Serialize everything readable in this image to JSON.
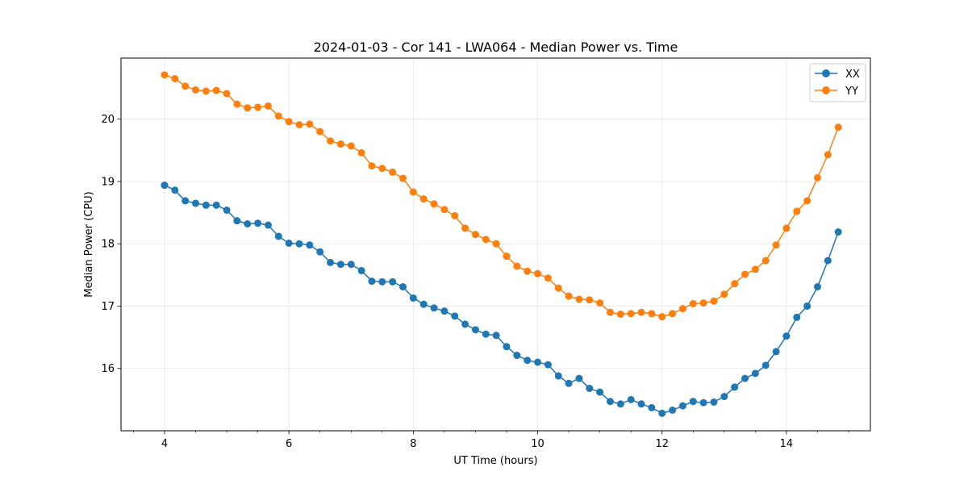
{
  "chart_data": {
    "type": "line",
    "title": "2024-01-03 - Cor 141 - LWA064 - Median Power vs. Time",
    "xlabel": "UT Time (hours)",
    "ylabel": "Median Power (CPU)",
    "xlim": [
      3.3,
      15.35
    ],
    "ylim": [
      15.0,
      20.98
    ],
    "xticks": [
      4,
      6,
      8,
      10,
      12,
      14
    ],
    "xtick_labels": [
      "4",
      "6",
      "8",
      "10",
      "12",
      "14"
    ],
    "xminor_ticks": [
      3.5,
      4.5,
      5,
      5.5,
      6.5,
      7,
      7.5,
      8.5,
      9,
      9.5,
      10.5,
      11,
      11.5,
      12.5,
      13,
      13.5,
      14.5,
      15
    ],
    "yticks": [
      16,
      17,
      18,
      19,
      20
    ],
    "ytick_labels": [
      "16",
      "17",
      "18",
      "19",
      "20"
    ],
    "grid": true,
    "legend_position": "top-right",
    "x": [
      4.0,
      4.1667,
      4.3333,
      4.5,
      4.6667,
      4.8333,
      5.0,
      5.1667,
      5.3333,
      5.5,
      5.6667,
      5.8333,
      6.0,
      6.1667,
      6.3333,
      6.5,
      6.6667,
      6.8333,
      7.0,
      7.1667,
      7.3333,
      7.5,
      7.6667,
      7.8333,
      8.0,
      8.1667,
      8.3333,
      8.5,
      8.6667,
      8.8333,
      9.0,
      9.1667,
      9.3333,
      9.5,
      9.6667,
      9.8333,
      10.0,
      10.1667,
      10.3333,
      10.5,
      10.6667,
      10.8333,
      11.0,
      11.1667,
      11.3333,
      11.5,
      11.6667,
      11.8333,
      12.0,
      12.1667,
      12.3333,
      12.5,
      12.6667,
      12.8333,
      13.0,
      13.1667,
      13.3333,
      13.5,
      13.6667,
      13.8333,
      14.0,
      14.1667,
      14.3333,
      14.5,
      14.6667,
      14.8333
    ],
    "series": [
      {
        "name": "XX",
        "color": "#1f77b4",
        "values": [
          18.94,
          18.86,
          18.69,
          18.65,
          18.62,
          18.62,
          18.54,
          18.37,
          18.32,
          18.33,
          18.3,
          18.12,
          18.01,
          18.0,
          17.98,
          17.87,
          17.7,
          17.67,
          17.67,
          17.57,
          17.4,
          17.39,
          17.39,
          17.31,
          17.13,
          17.03,
          16.97,
          16.92,
          16.84,
          16.71,
          16.62,
          16.55,
          16.53,
          16.35,
          16.21,
          16.13,
          16.1,
          16.06,
          15.88,
          15.76,
          15.84,
          15.68,
          15.62,
          15.47,
          15.43,
          15.5,
          15.43,
          15.37,
          15.28,
          15.33,
          15.4,
          15.47,
          15.45,
          15.46,
          15.55,
          15.7,
          15.84,
          15.92,
          16.05,
          16.27,
          16.52,
          16.82,
          17.0,
          17.31,
          17.73,
          18.19
        ]
      },
      {
        "name": "YY",
        "color": "#ff7f0e",
        "values": [
          20.71,
          20.65,
          20.53,
          20.47,
          20.45,
          20.46,
          20.41,
          20.24,
          20.18,
          20.19,
          20.21,
          20.05,
          19.96,
          19.91,
          19.92,
          19.8,
          19.65,
          19.6,
          19.57,
          19.46,
          19.25,
          19.21,
          19.15,
          19.05,
          18.83,
          18.72,
          18.64,
          18.55,
          18.45,
          18.25,
          18.15,
          18.07,
          18.0,
          17.8,
          17.64,
          17.56,
          17.52,
          17.45,
          17.29,
          17.16,
          17.11,
          17.1,
          17.05,
          16.9,
          16.87,
          16.88,
          16.9,
          16.88,
          16.83,
          16.88,
          16.96,
          17.04,
          17.05,
          17.08,
          17.19,
          17.36,
          17.51,
          17.59,
          17.73,
          17.98,
          18.25,
          18.52,
          18.69,
          19.06,
          19.43,
          19.87
        ]
      }
    ]
  }
}
